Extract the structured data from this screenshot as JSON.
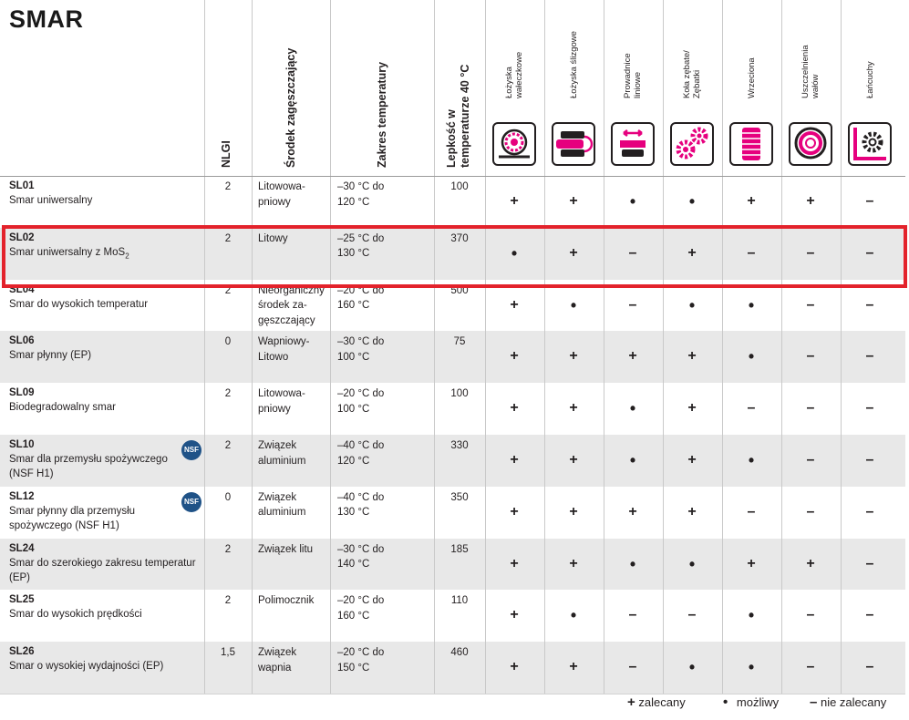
{
  "title": "SMAR",
  "headers": {
    "nlgi": "NLGI",
    "thickener": "Środek zagęszczający",
    "temp_range": "Zakres temperatury",
    "viscosity_1": "Lepkość w",
    "viscosity_2": "temperaturze 40 °C"
  },
  "applications": [
    {
      "l1": "Łożyska",
      "l2": "wałeczkowe",
      "icon": "roller-bearing-icon"
    },
    {
      "l1": "Łożyska ślizgowe",
      "l2": "",
      "icon": "plain-bearing-icon"
    },
    {
      "l1": "Prowadnice",
      "l2": "liniowe",
      "icon": "linear-guide-icon"
    },
    {
      "l1": "Koła zębate/",
      "l2": "Zębatki",
      "icon": "gears-icon"
    },
    {
      "l1": "Wrzeciona",
      "l2": "",
      "icon": "spindle-icon"
    },
    {
      "l1": "Uszczelnienia",
      "l2": "wałów",
      "icon": "shaft-seal-icon"
    },
    {
      "l1": "Łańcuchy",
      "l2": "",
      "icon": "chain-icon"
    }
  ],
  "rows": [
    {
      "code": "SL01",
      "name": "Smar uniwersalny",
      "name2": "",
      "nlgi": "2",
      "thick1": "Litowowa-",
      "thick2": "pniowy",
      "thick3": "",
      "t1": "–30 °C do",
      "t2": "120 °C",
      "visc": "100",
      "nsf": "",
      "sym": [
        "+",
        "+",
        "•",
        "•",
        "+",
        "+",
        "–"
      ]
    },
    {
      "code": "SL02",
      "name": "Smar uniwersalny z MoS",
      "name_sub": "2",
      "name2": "",
      "nlgi": "2",
      "thick1": "Litowy",
      "thick2": "",
      "thick3": "",
      "t1": "–25 °C do",
      "t2": "130 °C",
      "visc": "370",
      "nsf": "",
      "sym": [
        "•",
        "+",
        "–",
        "+",
        "–",
        "–",
        "–"
      ]
    },
    {
      "code": "SL04",
      "name": "Smar do wysokich temperatur",
      "name2": "",
      "nlgi": "2",
      "thick1": "Nieorganiczny",
      "thick2": "środek za-",
      "thick3": "gęszczający",
      "t1": "–20 °C do",
      "t2": "160 °C",
      "visc": "500",
      "nsf": "",
      "sym": [
        "+",
        "•",
        "–",
        "•",
        "•",
        "–",
        "–"
      ]
    },
    {
      "code": "SL06",
      "name": "Smar płynny (EP)",
      "name2": "",
      "nlgi": "0",
      "thick1": "Wapniowy-",
      "thick2": "Litowo",
      "thick3": "",
      "t1": "–30 °C do",
      "t2": "100 °C",
      "visc": "75",
      "nsf": "",
      "sym": [
        "+",
        "+",
        "+",
        "+",
        "•",
        "–",
        "–"
      ]
    },
    {
      "code": "SL09",
      "name": "Biodegradowalny smar",
      "name2": "",
      "nlgi": "2",
      "thick1": "Litowowa-",
      "thick2": "pniowy",
      "thick3": "",
      "t1": "–20 °C do",
      "t2": "100 °C",
      "visc": "100",
      "nsf": "",
      "sym": [
        "+",
        "+",
        "•",
        "+",
        "–",
        "–",
        "–"
      ]
    },
    {
      "code": "SL10",
      "name": "Smar dla przemysłu spożywczego",
      "name2": "(NSF H1)",
      "nlgi": "2",
      "thick1": "Związek",
      "thick2": "aluminium",
      "thick3": "",
      "t1": "–40 °C do",
      "t2": "120 °C",
      "visc": "330",
      "nsf": "NSF",
      "sym": [
        "+",
        "+",
        "•",
        "+",
        "•",
        "–",
        "–"
      ]
    },
    {
      "code": "SL12",
      "name": "Smar płynny dla przemysłu",
      "name2": "spożywczego (NSF H1)",
      "nlgi": "0",
      "thick1": "Związek",
      "thick2": "aluminium",
      "thick3": "",
      "t1": "–40 °C do",
      "t2": "130 °C",
      "visc": "350",
      "nsf": "NSF",
      "sym": [
        "+",
        "+",
        "+",
        "+",
        "–",
        "–",
        "–"
      ]
    },
    {
      "code": "SL24",
      "name": "Smar do szerokiego zakresu temperatur",
      "name2": "(EP)",
      "nlgi": "2",
      "thick1": "Związek litu",
      "thick2": "",
      "thick3": "",
      "t1": "–30 °C do",
      "t2": "140 °C",
      "visc": "185",
      "nsf": "",
      "sym": [
        "+",
        "+",
        "•",
        "•",
        "+",
        "+",
        "–"
      ]
    },
    {
      "code": "SL25",
      "name": "Smar do wysokich prędkości",
      "name2": "",
      "nlgi": "2",
      "thick1": "Polimocznik",
      "thick2": "",
      "thick3": "",
      "t1": "–20 °C do",
      "t2": "160 °C",
      "visc": "110",
      "nsf": "",
      "sym": [
        "+",
        "•",
        "–",
        "–",
        "•",
        "–",
        "–"
      ]
    },
    {
      "code": "SL26",
      "name": "Smar o wysokiej wydajności (EP)",
      "name2": "",
      "nlgi": "1,5",
      "thick1": "Związek",
      "thick2": "wapnia",
      "thick3": "",
      "t1": "–20 °C do",
      "t2": "150 °C",
      "visc": "460",
      "nsf": "",
      "sym": [
        "+",
        "+",
        "–",
        "•",
        "•",
        "–",
        "–"
      ]
    }
  ],
  "legend": {
    "plus_symbol": "+",
    "plus_label": "zalecany",
    "dot_symbol": "•",
    "dot_label": "możliwy",
    "minus_symbol": "–",
    "minus_label": "nie zalecany"
  },
  "colors": {
    "accent": "#e6007e",
    "highlight": "#e3222b",
    "stripe": "#e8e8e8",
    "nsf": "#1f5287"
  }
}
